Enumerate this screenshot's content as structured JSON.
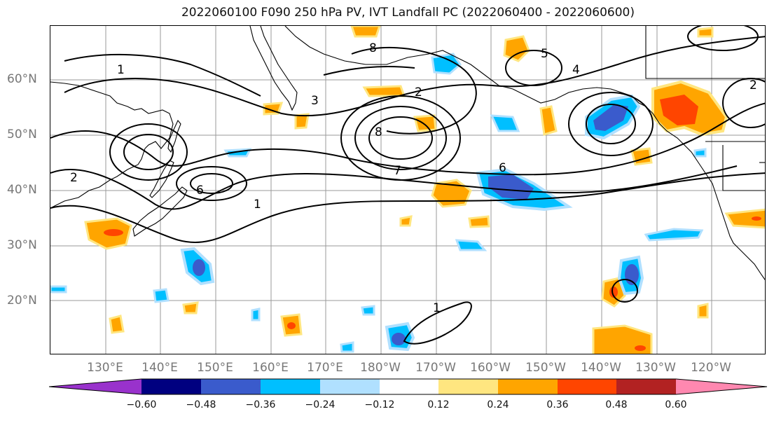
{
  "title": "2022060100 F090 250 hPa PV, IVT Landfall PC (2022060400 - 2022060600)",
  "lat_labels": [
    "60°N",
    "50°N",
    "40°N",
    "30°N",
    "20°N"
  ],
  "lon_labels": [
    "130°E",
    "140°E",
    "150°E",
    "160°E",
    "170°E",
    "180°W",
    "170°W",
    "160°W",
    "150°W",
    "140°W",
    "130°W",
    "120°W"
  ],
  "contour_labels": [
    "1",
    "2",
    "3",
    "4",
    "5",
    "6",
    "7",
    "8"
  ],
  "colorbar": {
    "ticks": [
      "−0.60",
      "−0.48",
      "−0.36",
      "−0.24",
      "−0.12",
      "0.12",
      "0.24",
      "0.36",
      "0.48",
      "0.60"
    ],
    "colors": [
      "#9932CC",
      "#000080",
      "#3A5BCC",
      "#00BFFF",
      "#B0E0FF",
      "#FFFFFF",
      "#FFE680",
      "#FFA500",
      "#FF4500",
      "#B22222",
      "#FF88B0"
    ]
  }
}
